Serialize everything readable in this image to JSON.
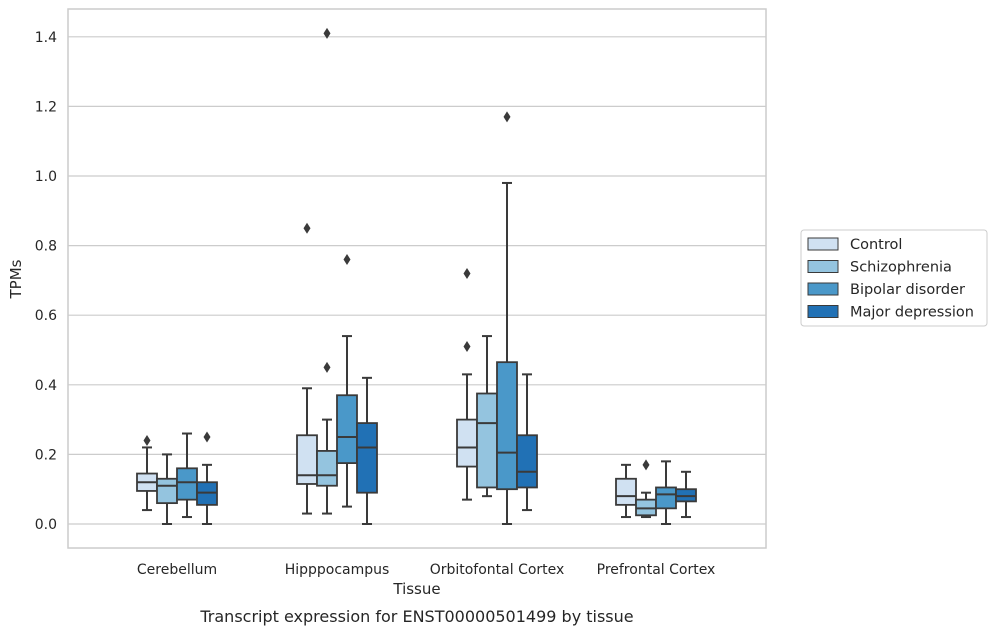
{
  "chart_data": {
    "type": "box",
    "title": "",
    "caption": "Transcript expression for ENST00000501499 by tissue",
    "xlabel": "Tissue",
    "ylabel": "TPMs",
    "ylim": [
      -0.07,
      1.48
    ],
    "yticks": [
      0.0,
      0.2,
      0.4,
      0.6,
      0.8,
      1.0,
      1.2,
      1.4
    ],
    "ytick_labels": [
      "0.0",
      "0.2",
      "0.4",
      "0.6",
      "0.8",
      "1.0",
      "1.2",
      "1.4"
    ],
    "grid": "horizontal",
    "legend_position": "outside-right",
    "categories": [
      "Cerebellum",
      "Hipppocampus",
      "Orbitofontal Cortex",
      "Prefrontal Cortex"
    ],
    "series": [
      {
        "name": "Control",
        "color": "#d0e1f2",
        "boxes": [
          {
            "whisker_low": 0.04,
            "q1": 0.095,
            "median": 0.12,
            "q3": 0.145,
            "whisker_high": 0.22,
            "outliers": [
              0.24
            ]
          },
          {
            "whisker_low": 0.03,
            "q1": 0.115,
            "median": 0.14,
            "q3": 0.255,
            "whisker_high": 0.39,
            "outliers": [
              0.85
            ]
          },
          {
            "whisker_low": 0.07,
            "q1": 0.165,
            "median": 0.22,
            "q3": 0.3,
            "whisker_high": 0.43,
            "outliers": [
              0.51,
              0.72
            ]
          },
          {
            "whisker_low": 0.02,
            "q1": 0.055,
            "median": 0.08,
            "q3": 0.13,
            "whisker_high": 0.17,
            "outliers": []
          }
        ]
      },
      {
        "name": "Schizophrenia",
        "color": "#94c4df",
        "boxes": [
          {
            "whisker_low": 0.0,
            "q1": 0.06,
            "median": 0.11,
            "q3": 0.13,
            "whisker_high": 0.2,
            "outliers": []
          },
          {
            "whisker_low": 0.03,
            "q1": 0.11,
            "median": 0.14,
            "q3": 0.21,
            "whisker_high": 0.3,
            "outliers": [
              0.45,
              1.41
            ]
          },
          {
            "whisker_low": 0.08,
            "q1": 0.105,
            "median": 0.29,
            "q3": 0.375,
            "whisker_high": 0.54,
            "outliers": []
          },
          {
            "whisker_low": 0.02,
            "q1": 0.025,
            "median": 0.045,
            "q3": 0.07,
            "whisker_high": 0.09,
            "outliers": [
              0.17
            ]
          }
        ]
      },
      {
        "name": "Bipolar disorder",
        "color": "#4a98c9",
        "boxes": [
          {
            "whisker_low": 0.02,
            "q1": 0.07,
            "median": 0.12,
            "q3": 0.16,
            "whisker_high": 0.26,
            "outliers": []
          },
          {
            "whisker_low": 0.05,
            "q1": 0.175,
            "median": 0.25,
            "q3": 0.37,
            "whisker_high": 0.54,
            "outliers": [
              0.76
            ]
          },
          {
            "whisker_low": 0.0,
            "q1": 0.1,
            "median": 0.205,
            "q3": 0.465,
            "whisker_high": 0.98,
            "outliers": [
              1.17
            ]
          },
          {
            "whisker_low": 0.0,
            "q1": 0.045,
            "median": 0.085,
            "q3": 0.105,
            "whisker_high": 0.18,
            "outliers": []
          }
        ]
      },
      {
        "name": "Major depression",
        "color": "#2171b5",
        "boxes": [
          {
            "whisker_low": 0.0,
            "q1": 0.055,
            "median": 0.09,
            "q3": 0.12,
            "whisker_high": 0.17,
            "outliers": [
              0.25
            ]
          },
          {
            "whisker_low": 0.0,
            "q1": 0.09,
            "median": 0.22,
            "q3": 0.29,
            "whisker_high": 0.42,
            "outliers": []
          },
          {
            "whisker_low": 0.04,
            "q1": 0.105,
            "median": 0.15,
            "q3": 0.255,
            "whisker_high": 0.43,
            "outliers": []
          },
          {
            "whisker_low": 0.02,
            "q1": 0.065,
            "median": 0.08,
            "q3": 0.1,
            "whisker_high": 0.15,
            "outliers": []
          }
        ]
      }
    ]
  },
  "colors": {
    "edge": "#3a3a3a",
    "grid": "#cccccc",
    "frame": "#cccccc",
    "text": "#262626"
  }
}
